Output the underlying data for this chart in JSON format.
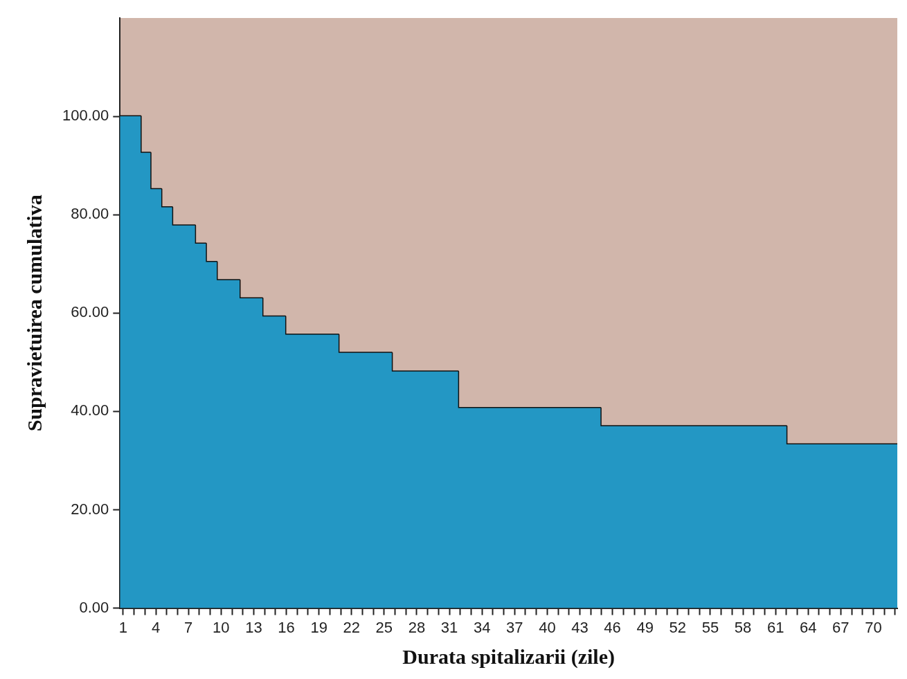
{
  "chart_data": {
    "type": "step",
    "xlabel": "Durata spitalizarii (zile)",
    "ylabel": "Supravietuirea cumulativa",
    "series": [
      {
        "type": "area",
        "color": "#2397c4",
        "x": [
          0.7,
          2.6,
          3.5,
          4.5,
          5.5,
          7.6,
          8.6,
          9.6,
          11.7,
          13.8,
          15.9,
          20.8,
          25.7,
          31.8,
          44.9,
          62.0,
          72.2
        ],
        "values": [
          100,
          92.6,
          85.2,
          81.5,
          77.8,
          74.1,
          70.4,
          66.7,
          63.0,
          59.3,
          55.6,
          51.9,
          48.1,
          40.7,
          37.0,
          33.3,
          33.3
        ]
      },
      {
        "type": "step",
        "color": "#111111",
        "x": [
          0.7,
          2.6,
          3.5,
          4.5,
          5.5,
          7.6,
          8.6,
          9.6,
          11.7,
          13.8,
          15.9,
          20.8,
          25.7,
          31.8,
          44.9,
          62.0,
          72.2
        ],
        "values": [
          100,
          92.6,
          85.2,
          81.5,
          77.8,
          74.1,
          70.4,
          66.7,
          63.0,
          59.3,
          55.6,
          51.9,
          48.1,
          40.7,
          37.0,
          33.3,
          33.3
        ]
      }
    ],
    "xlim": [
      0.7,
      72.2
    ],
    "xticks": [
      1,
      {
        "value": 2,
        "label": null
      },
      {
        "value": 3,
        "label": null
      },
      4,
      {
        "value": 5,
        "label": null
      },
      {
        "value": 6,
        "label": null
      },
      7,
      {
        "value": 8,
        "label": null
      },
      {
        "value": 9,
        "label": null
      },
      10,
      {
        "value": 11,
        "label": null
      },
      {
        "value": 12,
        "label": null
      },
      13,
      {
        "value": 14,
        "label": null
      },
      {
        "value": 15,
        "label": null
      },
      16,
      {
        "value": 17,
        "label": null
      },
      {
        "value": 18,
        "label": null
      },
      19,
      {
        "value": 20,
        "label": null
      },
      {
        "value": 21,
        "label": null
      },
      22,
      {
        "value": 23,
        "label": null
      },
      {
        "value": 24,
        "label": null
      },
      25,
      {
        "value": 26,
        "label": null
      },
      {
        "value": 27,
        "label": null
      },
      28,
      {
        "value": 29,
        "label": null
      },
      {
        "value": 30,
        "label": null
      },
      31,
      {
        "value": 32,
        "label": null
      },
      {
        "value": 33,
        "label": null
      },
      34,
      {
        "value": 35,
        "label": null
      },
      {
        "value": 36,
        "label": null
      },
      37,
      {
        "value": 38,
        "label": null
      },
      {
        "value": 39,
        "label": null
      },
      40,
      {
        "value": 41,
        "label": null
      },
      {
        "value": 42,
        "label": null
      },
      43,
      {
        "value": 44,
        "label": null
      },
      {
        "value": 45,
        "label": null
      },
      46,
      {
        "value": 47,
        "label": null
      },
      {
        "value": 48,
        "label": null
      },
      49,
      {
        "value": 50,
        "label": null
      },
      {
        "value": 51,
        "label": null
      },
      52,
      {
        "value": 53,
        "label": null
      },
      {
        "value": 54,
        "label": null
      },
      55,
      {
        "value": 56,
        "label": null
      },
      {
        "value": 57,
        "label": null
      },
      58,
      {
        "value": 59,
        "label": null
      },
      {
        "value": 60,
        "label": null
      },
      61,
      {
        "value": 62,
        "label": null
      },
      {
        "value": 63,
        "label": null
      },
      64,
      {
        "value": 65,
        "label": null
      },
      {
        "value": 66,
        "label": null
      },
      67,
      {
        "value": 68,
        "label": null
      },
      {
        "value": 69,
        "label": null
      },
      70,
      {
        "value": 71,
        "label": null
      },
      {
        "value": 72,
        "label": null
      }
    ],
    "ylim": [
      0,
      120
    ],
    "yticks": [
      {
        "value": 0,
        "label": "0.00"
      },
      {
        "value": 20,
        "label": "20.00"
      },
      {
        "value": 40,
        "label": "40.00"
      },
      {
        "value": 60,
        "label": "60.00"
      },
      {
        "value": 80,
        "label": "80.00"
      },
      {
        "value": 100,
        "label": "100.00"
      }
    ],
    "grid": false,
    "legend": false
  }
}
